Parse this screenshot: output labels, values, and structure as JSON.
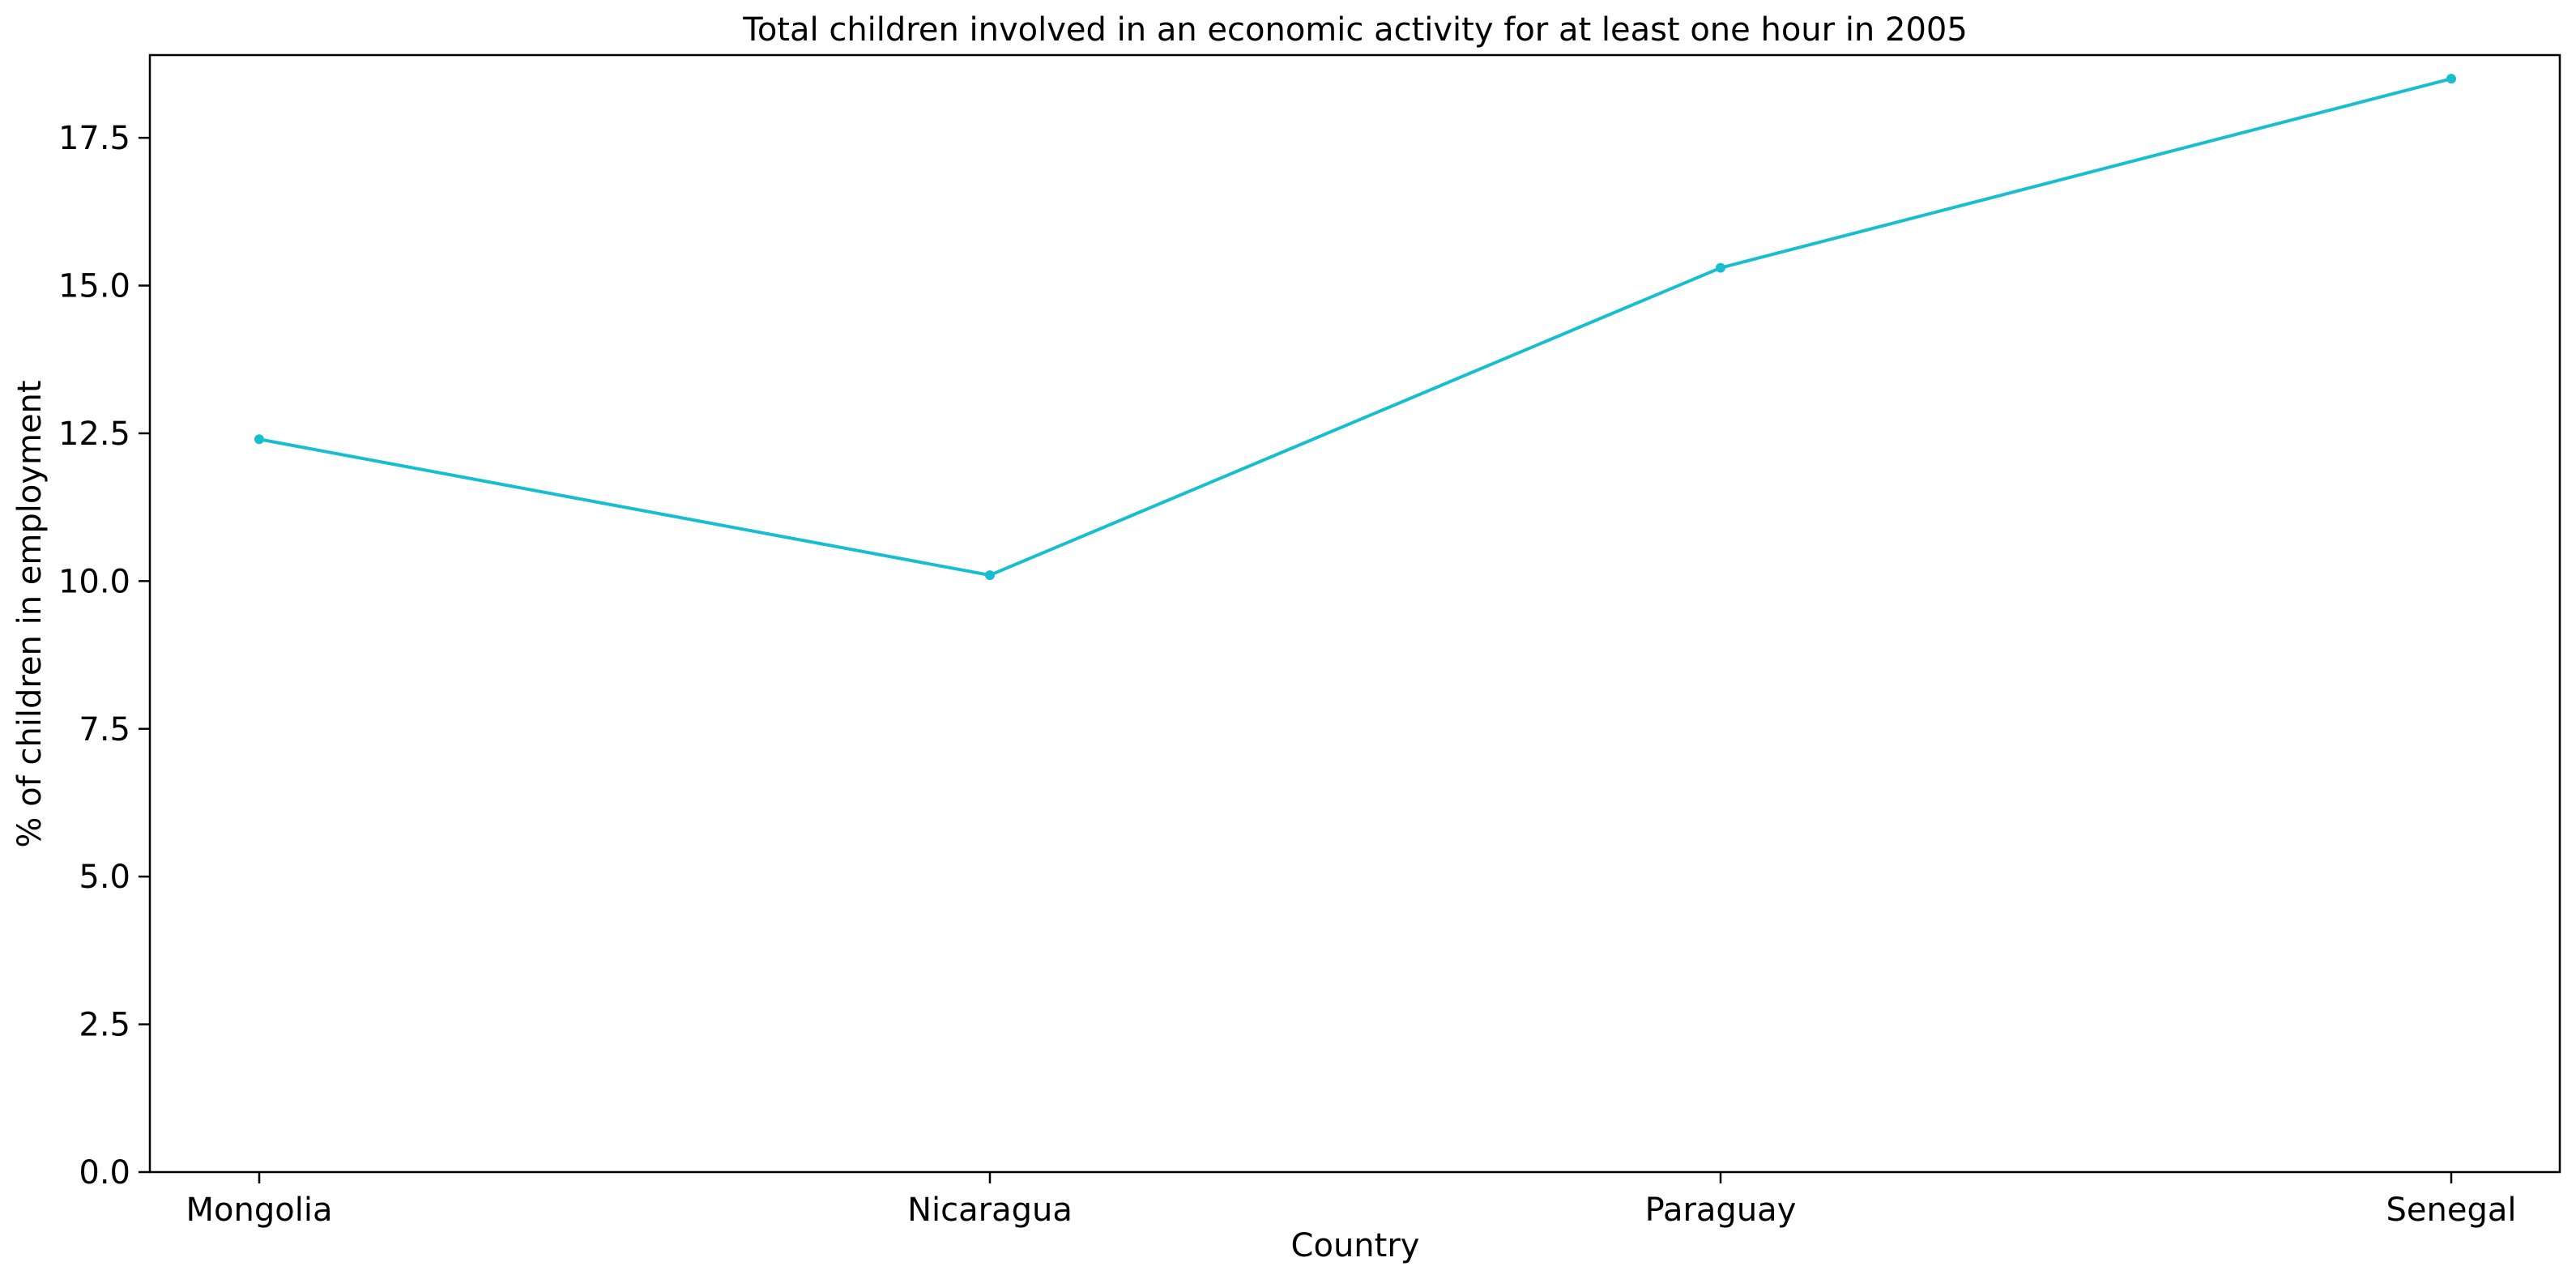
{
  "chart_data": {
    "type": "line",
    "title": "Total children involved in an economic activity for at least one hour in 2005",
    "xlabel": "Country",
    "ylabel": "% of children in employment",
    "categories": [
      "Mongolia",
      "Nicaragua",
      "Paraguay",
      "Senegal"
    ],
    "series": [
      {
        "values": [
          12.4,
          10.1,
          15.3,
          18.5
        ],
        "color": "#17becf"
      }
    ],
    "ylim": [
      0,
      18.9
    ],
    "yticks": [
      0.0,
      2.5,
      5.0,
      7.5,
      10.0,
      12.5,
      15.0,
      17.5
    ],
    "ytick_labels": [
      "0.0",
      "2.5",
      "5.0",
      "7.5",
      "10.0",
      "12.5",
      "15.0",
      "17.5"
    ],
    "grid": false,
    "legend": "none"
  }
}
